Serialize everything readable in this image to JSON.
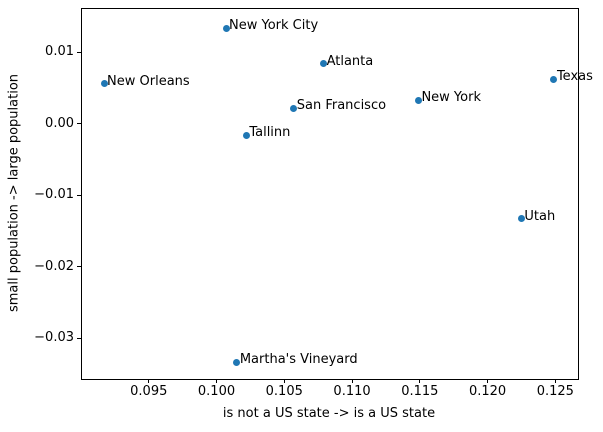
{
  "chart_data": {
    "type": "scatter",
    "title": "",
    "xlabel": "is not a US state -> is a US state",
    "ylabel": "small population -> large population",
    "xlim": [
      0.09,
      0.1266
    ],
    "ylim": [
      -0.0356,
      0.0162
    ],
    "xticks": [
      0.095,
      0.1,
      0.105,
      0.11,
      0.115,
      0.12,
      0.125
    ],
    "xtick_labels": [
      "0.095",
      "0.100",
      "0.105",
      "0.110",
      "0.115",
      "0.120",
      "0.125"
    ],
    "yticks": [
      0.01,
      0.0,
      -0.01,
      -0.02,
      -0.03
    ],
    "ytick_labels": [
      "0.01",
      "0.00",
      "−0.01",
      "−0.02",
      "−0.03"
    ],
    "grid": false,
    "legend": null,
    "marker_color": "#1f77b4",
    "points": [
      {
        "label": "New York City",
        "x": 0.1007,
        "y": 0.0134
      },
      {
        "label": "Atlanta",
        "x": 0.1079,
        "y": 0.0084
      },
      {
        "label": "Texas",
        "x": 0.1249,
        "y": 0.0062
      },
      {
        "label": "New Orleans",
        "x": 0.0917,
        "y": 0.0056
      },
      {
        "label": "New York",
        "x": 0.1149,
        "y": 0.0033
      },
      {
        "label": "San Francisco",
        "x": 0.1057,
        "y": 0.0022
      },
      {
        "label": "Tallinn",
        "x": 0.1022,
        "y": -0.0016
      },
      {
        "label": "Utah",
        "x": 0.1225,
        "y": -0.0133
      },
      {
        "label": "Martha's Vineyard",
        "x": 0.1015,
        "y": -0.0334
      }
    ]
  }
}
